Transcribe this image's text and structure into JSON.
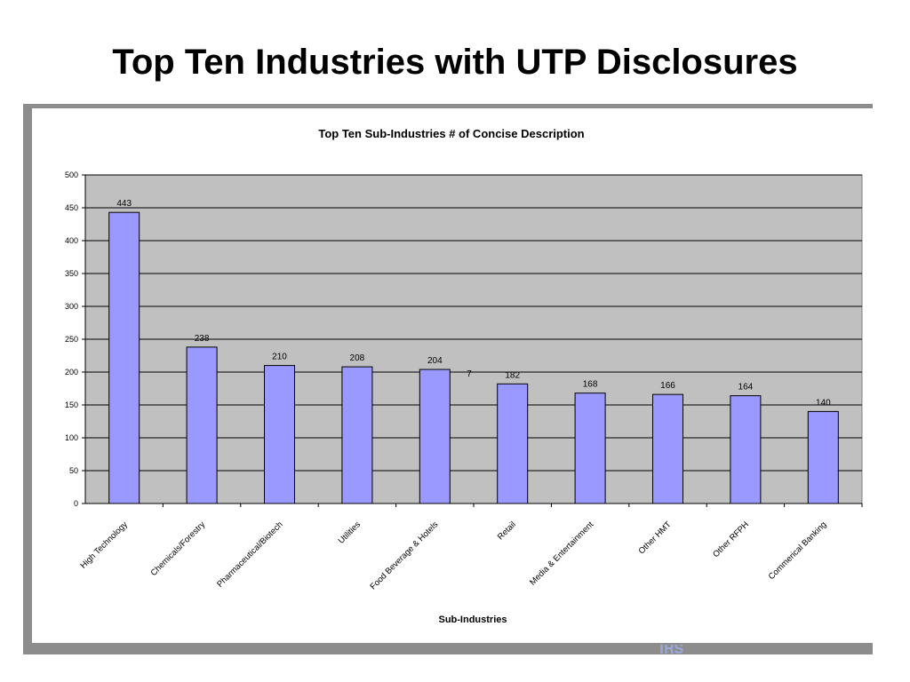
{
  "slide": {
    "title": "Top Ten Industries with UTP Disclosures"
  },
  "colors": {
    "plot_background": "#c0c0c0",
    "bar_fill": "#9999ff",
    "bar_stroke": "#000000",
    "frame": "#8c8c8c"
  },
  "chart_data": {
    "type": "bar",
    "title": "Top Ten Sub-Industries # of Concise Description",
    "xlabel": "Sub-Industries",
    "ylabel": "",
    "ylim": [
      0,
      500
    ],
    "yticks": [
      0,
      50,
      100,
      150,
      200,
      250,
      300,
      350,
      400,
      450,
      500
    ],
    "grid": true,
    "legend": "none",
    "categories": [
      "High Technology",
      "Chemicals/Forestry",
      "Pharmaceutical/Biotech",
      "Utilities",
      "Food Beverage & Hotels",
      "Retail",
      "Media & Entertainment",
      "Other HMT",
      "Other RFPH",
      "Commerical Banking"
    ],
    "values": [
      443,
      238,
      210,
      208,
      204,
      182,
      168,
      166,
      164,
      140
    ],
    "annotations": [
      {
        "text": "7",
        "after_category": "Food Beverage & Hotels",
        "y": 193
      }
    ]
  }
}
